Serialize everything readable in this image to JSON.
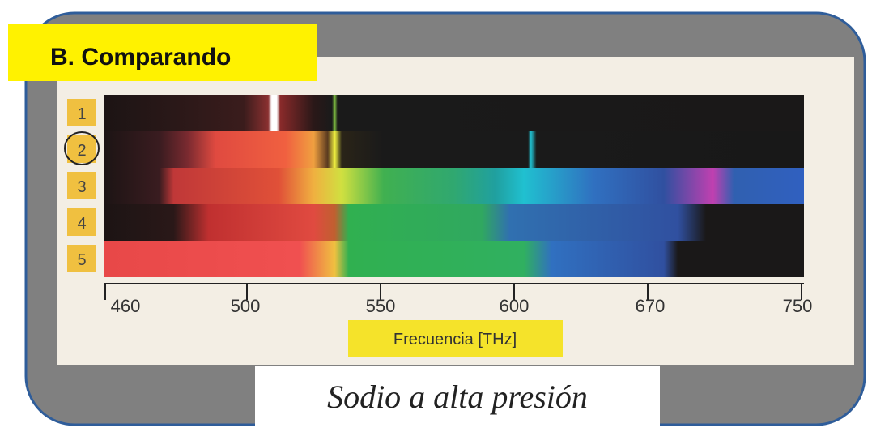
{
  "header": {
    "title": "B. Comparando"
  },
  "spectra": {
    "rows": [
      "1",
      "2",
      "3",
      "4",
      "5"
    ]
  },
  "axis": {
    "ticks": [
      "460",
      "500",
      "550",
      "600",
      "670",
      "750"
    ],
    "label": "Frecuencia [THz]"
  },
  "caption": "Sodio a alta presión"
}
